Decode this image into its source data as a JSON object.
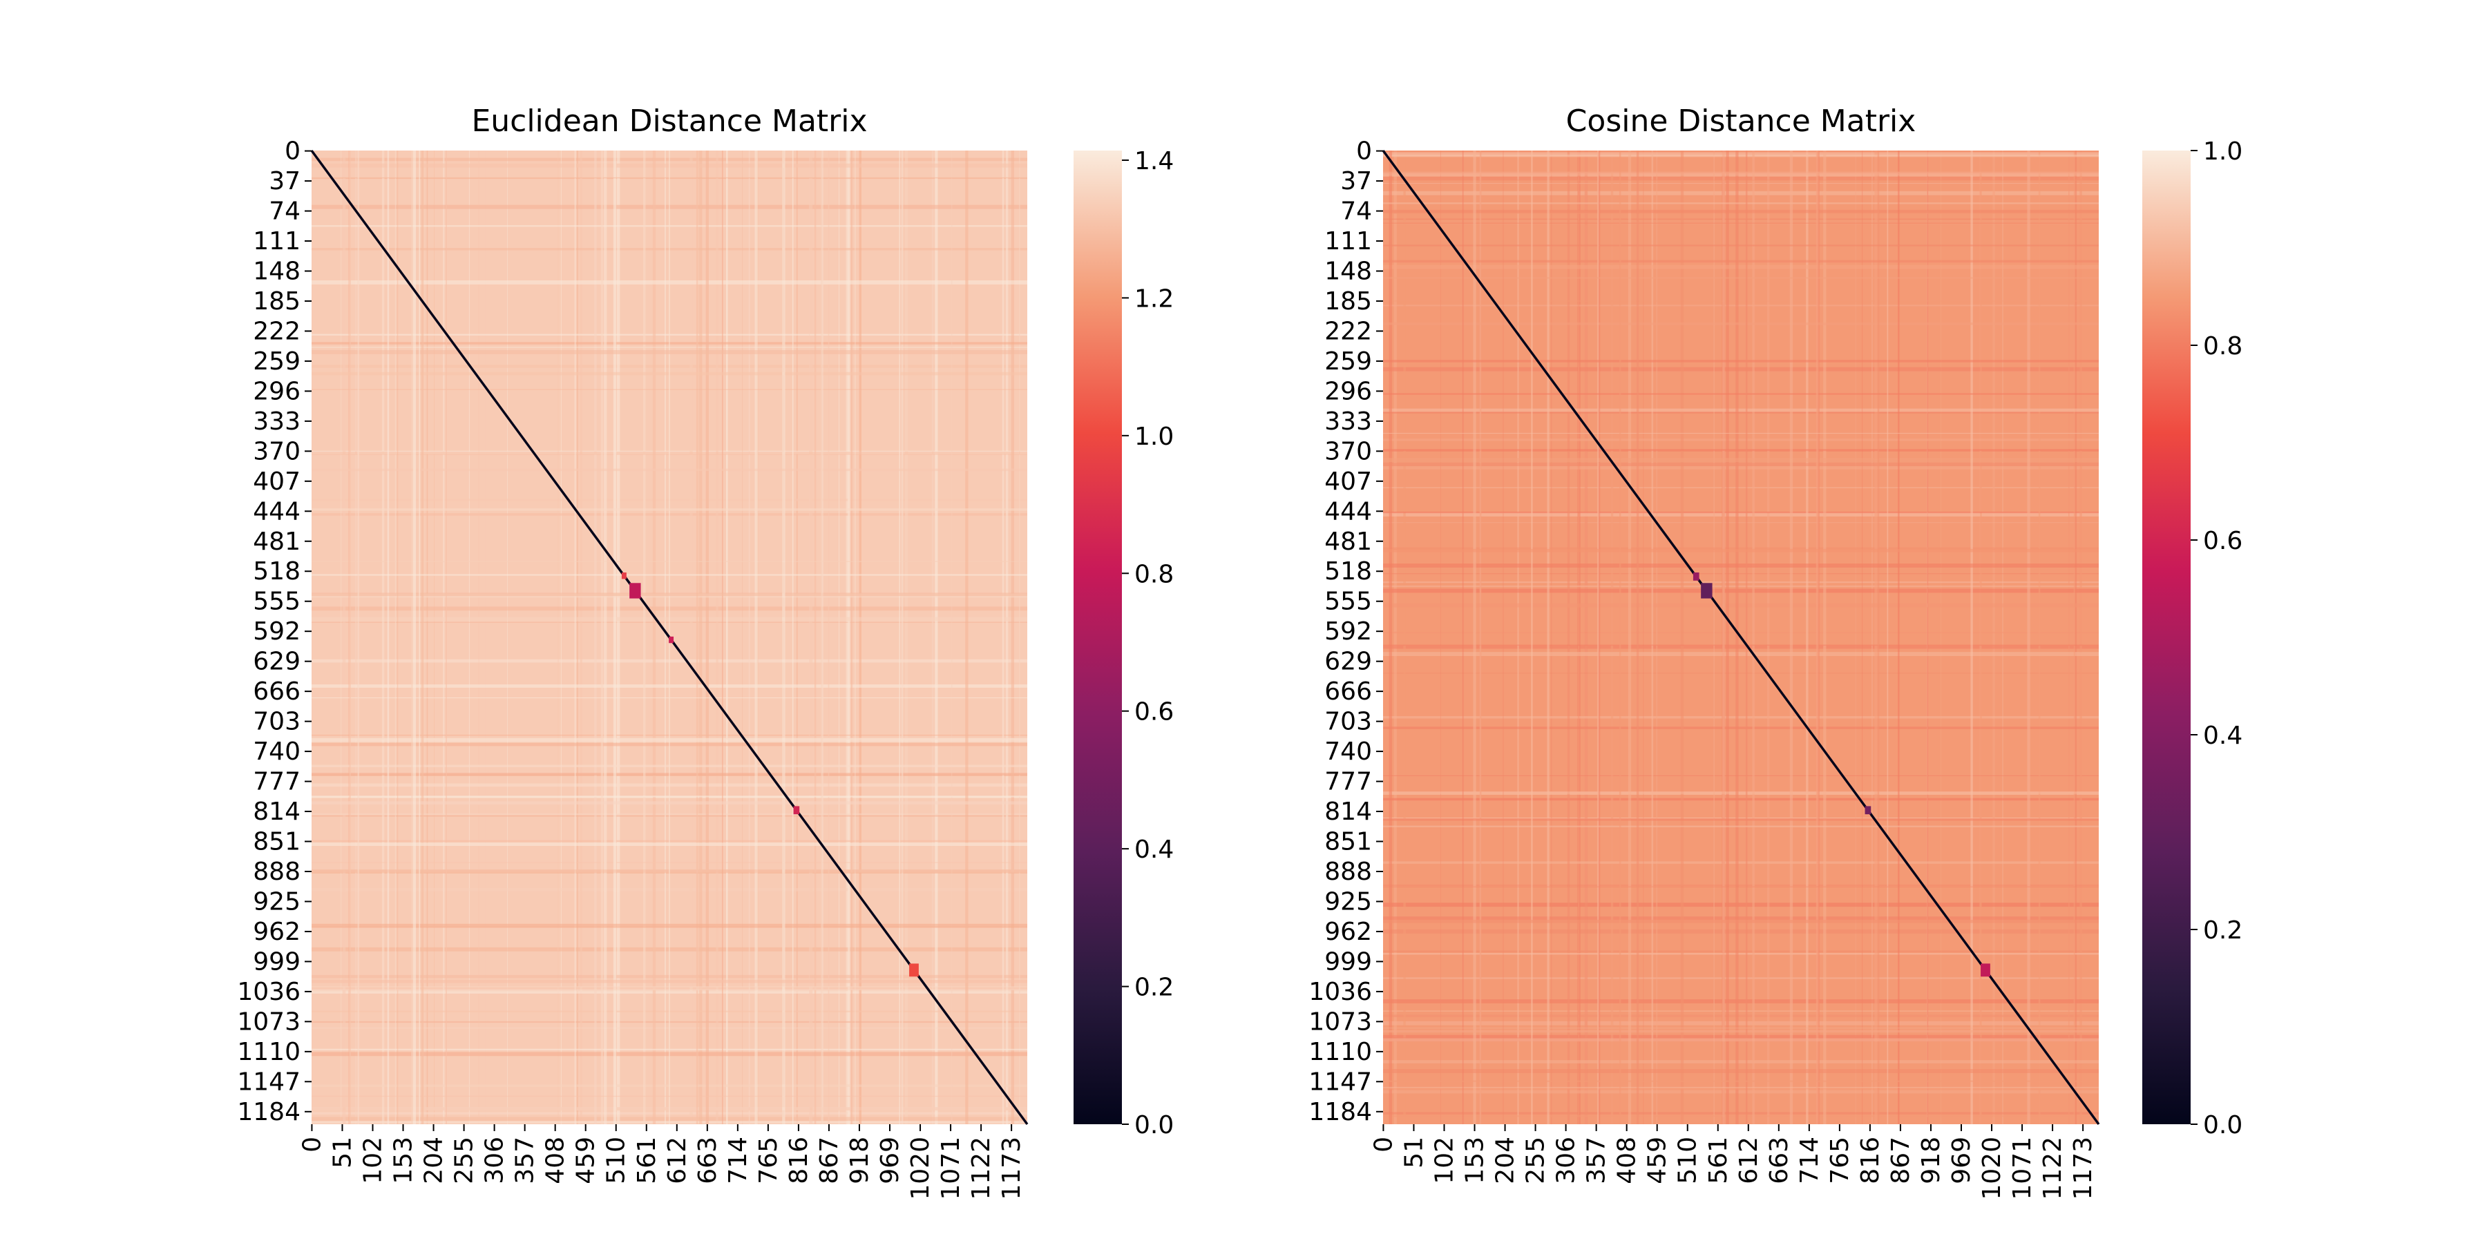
{
  "chart_data": [
    {
      "type": "heatmap",
      "title": "Euclidean Distance Matrix",
      "xlabel": "",
      "ylabel": "",
      "n": 1200,
      "value_range": [
        0,
        1.414
      ],
      "diagonal_value": 0,
      "typical_off_diagonal": 1.33,
      "y_tick_labels": [
        "0",
        "37",
        "74",
        "111",
        "148",
        "185",
        "222",
        "259",
        "296",
        "333",
        "370",
        "407",
        "444",
        "481",
        "518",
        "555",
        "592",
        "629",
        "666",
        "703",
        "740",
        "777",
        "814",
        "851",
        "888",
        "925",
        "962",
        "999",
        "1036",
        "1073",
        "1110",
        "1147",
        "1184"
      ],
      "x_tick_labels": [
        "0",
        "51",
        "102",
        "153",
        "204",
        "255",
        "306",
        "357",
        "408",
        "459",
        "510",
        "561",
        "612",
        "663",
        "714",
        "765",
        "816",
        "867",
        "918",
        "969",
        "1020",
        "1071",
        "1122",
        "1173"
      ],
      "colorbar": {
        "ticks": [
          "0.0",
          "0.2",
          "0.4",
          "0.6",
          "0.8",
          "1.0",
          "1.2",
          "1.4"
        ],
        "values": [
          0,
          0.2,
          0.4,
          0.6,
          0.8,
          1.0,
          1.2,
          1.4
        ]
      },
      "dark_blocks": [
        {
          "start": 520,
          "end": 528,
          "value": 0.95
        },
        {
          "start": 533,
          "end": 552,
          "value": 0.78
        },
        {
          "start": 599,
          "end": 607,
          "value": 0.82
        },
        {
          "start": 808,
          "end": 818,
          "value": 0.85
        },
        {
          "start": 1002,
          "end": 1018,
          "value": 1.0
        }
      ]
    },
    {
      "type": "heatmap",
      "title": "Cosine Distance Matrix",
      "xlabel": "",
      "ylabel": "",
      "n": 1200,
      "value_range": [
        0,
        1.0
      ],
      "diagonal_value": 0,
      "typical_off_diagonal": 0.85,
      "y_tick_labels": [
        "0",
        "37",
        "74",
        "111",
        "148",
        "185",
        "222",
        "259",
        "296",
        "333",
        "370",
        "407",
        "444",
        "481",
        "518",
        "555",
        "592",
        "629",
        "666",
        "703",
        "740",
        "777",
        "814",
        "851",
        "888",
        "925",
        "962",
        "999",
        "1036",
        "1073",
        "1110",
        "1147",
        "1184"
      ],
      "x_tick_labels": [
        "0",
        "51",
        "102",
        "153",
        "204",
        "255",
        "306",
        "357",
        "408",
        "459",
        "510",
        "561",
        "612",
        "663",
        "714",
        "765",
        "816",
        "867",
        "918",
        "969",
        "1020",
        "1071",
        "1122",
        "1173"
      ],
      "colorbar": {
        "ticks": [
          "0.0",
          "0.2",
          "0.4",
          "0.6",
          "0.8",
          "1.0"
        ],
        "values": [
          0,
          0.2,
          0.4,
          0.6,
          0.8,
          1.0
        ]
      },
      "dark_blocks": [
        {
          "start": 520,
          "end": 530,
          "value": 0.45
        },
        {
          "start": 533,
          "end": 552,
          "value": 0.3
        },
        {
          "start": 808,
          "end": 818,
          "value": 0.35
        },
        {
          "start": 1002,
          "end": 1018,
          "value": 0.55
        }
      ]
    }
  ]
}
